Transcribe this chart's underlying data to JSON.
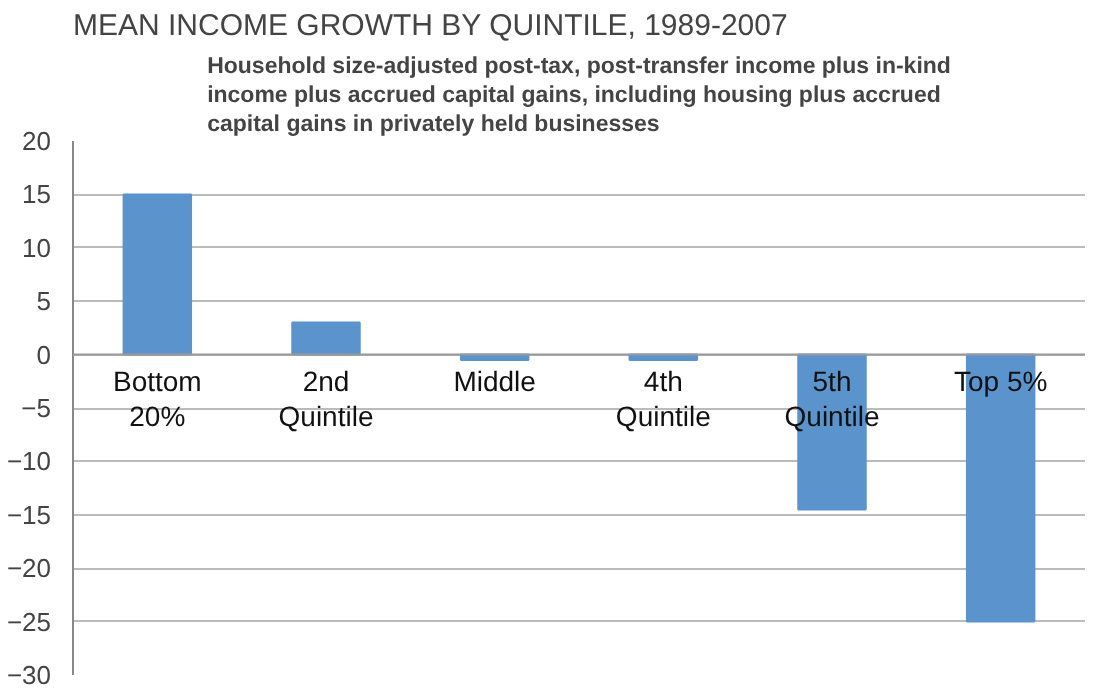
{
  "chart_data": {
    "type": "bar",
    "title": "MEAN INCOME GROWTH BY QUINTILE, 1989-2007",
    "subtitle": "Household size-adjusted post-tax, post-transfer income plus in-kind income plus accrued capital gains, including housing plus accrued capital gains in privately held businesses",
    "categories": [
      "Bottom 20%",
      "2nd Quintile",
      "Middle",
      "4th Quintile",
      "5th Quintile",
      "Top 5%"
    ],
    "values": [
      15,
      3,
      -0.5,
      -0.5,
      -14.5,
      -25
    ],
    "color": "#5b93cd",
    "ylim": [
      -30,
      20
    ],
    "yticks": [
      -30,
      -25,
      -20,
      -15,
      -10,
      -5,
      0,
      5,
      10,
      15,
      20
    ],
    "grid": "y"
  }
}
